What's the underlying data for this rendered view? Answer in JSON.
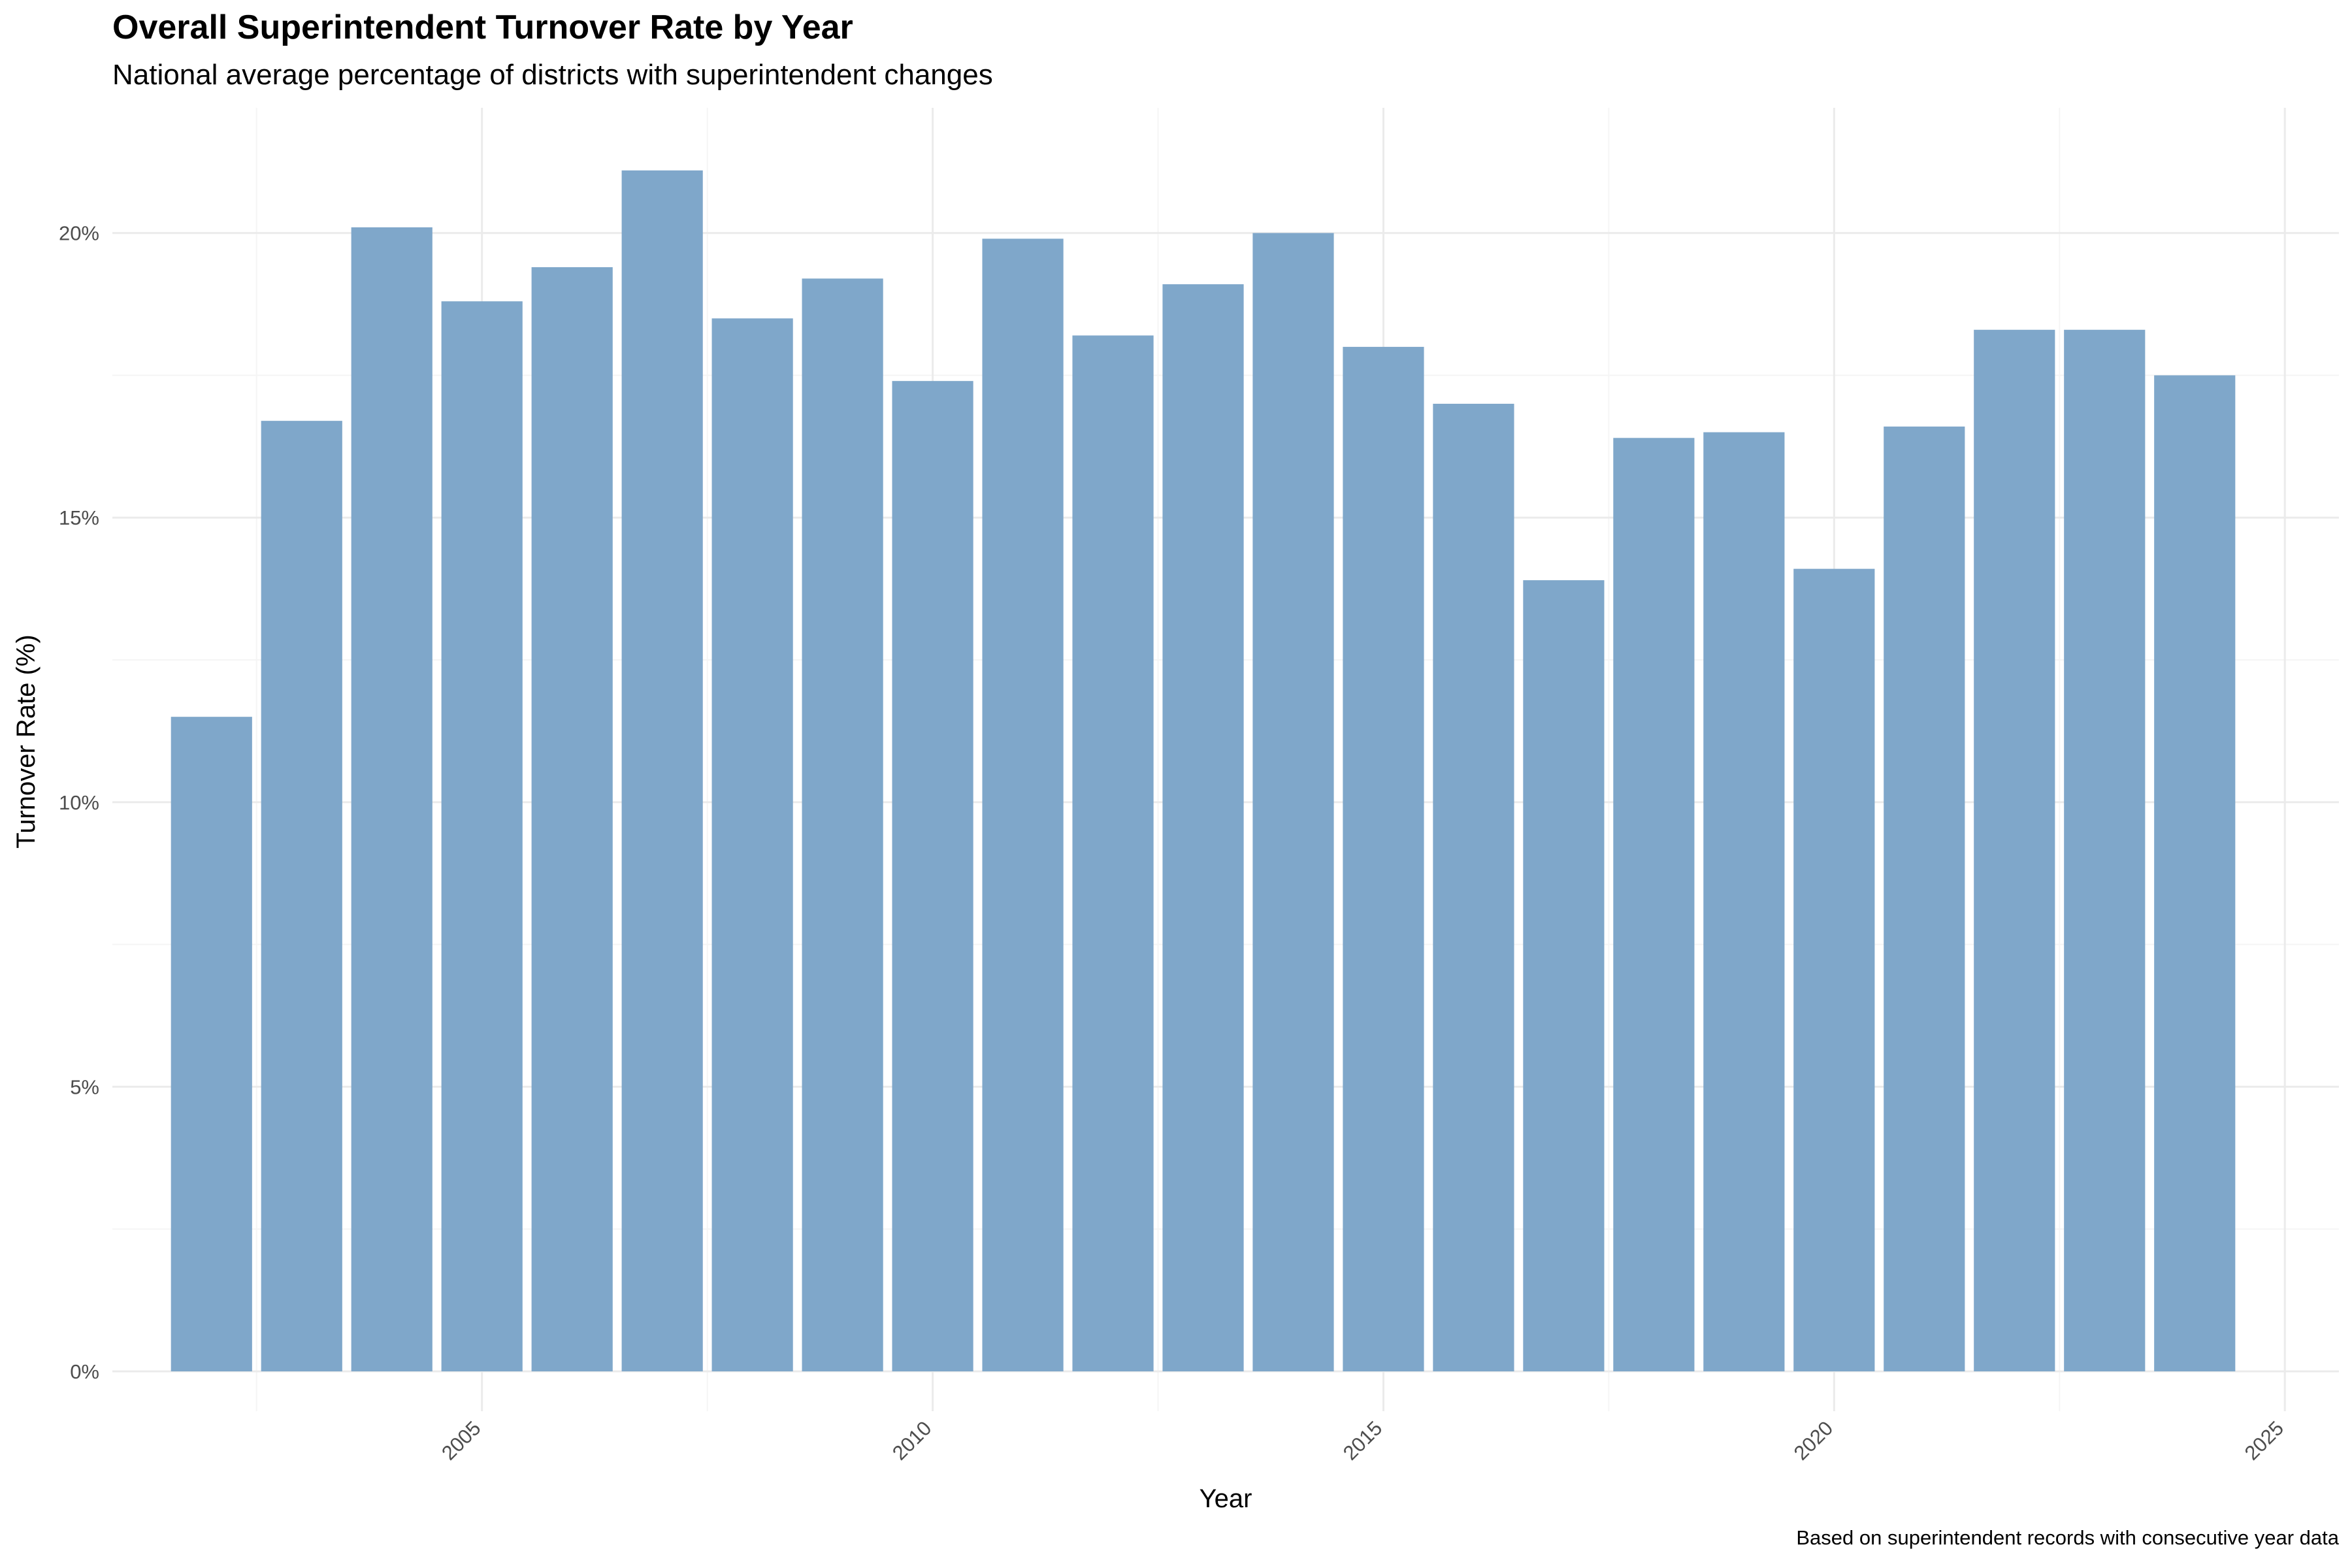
{
  "chart_data": {
    "type": "bar",
    "title": "Overall Superintendent Turnover Rate by Year",
    "subtitle": "National average percentage of districts with superintendent changes",
    "caption": "Based on superintendent records with consecutive year data",
    "xlabel": "Year",
    "ylabel": "Turnover Rate (%)",
    "x": [
      2002,
      2003,
      2004,
      2005,
      2006,
      2007,
      2008,
      2009,
      2010,
      2011,
      2012,
      2013,
      2014,
      2015,
      2016,
      2017,
      2018,
      2019,
      2020,
      2021,
      2022,
      2023,
      2024
    ],
    "values": [
      11.5,
      16.7,
      20.1,
      18.8,
      19.4,
      21.1,
      18.5,
      19.2,
      17.4,
      19.9,
      18.2,
      19.1,
      20.0,
      18.0,
      17.0,
      13.9,
      16.4,
      16.5,
      14.1,
      16.6,
      18.3,
      18.3,
      17.5
    ],
    "x_ticks": [
      2005,
      2010,
      2015,
      2020,
      2025
    ],
    "y_ticks": [
      0,
      5,
      10,
      15,
      20
    ],
    "y_tick_labels": [
      "0%",
      "5%",
      "10%",
      "15%",
      "20%"
    ],
    "xlim": [
      2000.9,
      2025.6
    ],
    "ylim": [
      -0.7,
      22.2
    ],
    "grid": true,
    "legend": "none",
    "colors": {
      "bar": "#7fa7ca",
      "grid_major": "#ebebeb",
      "grid_minor": "#f5f5f5",
      "tick_text": "#4d4d4d"
    }
  }
}
